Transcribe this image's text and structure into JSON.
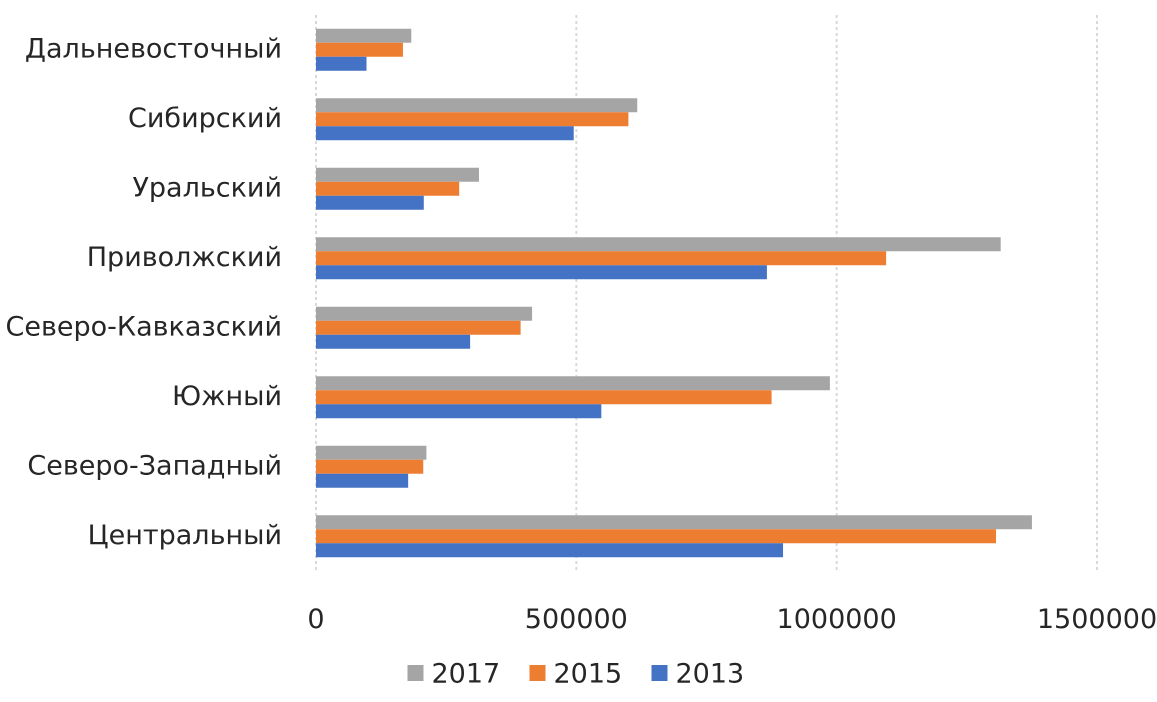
{
  "chart_data": {
    "type": "bar",
    "orientation": "horizontal",
    "title": "",
    "xlabel": "",
    "ylabel": "",
    "categories": [
      "Центральный",
      "Северо-Западный",
      "Южный",
      "Северо-Кавказский",
      "Приволжский",
      "Уральский",
      "Сибирский",
      "Дальневосточный"
    ],
    "series": [
      {
        "name": "2017",
        "color": "#A5A5A5",
        "values": [
          1375000,
          212000,
          987000,
          415000,
          1315000,
          313000,
          617000,
          183000
        ]
      },
      {
        "name": "2015",
        "color": "#ED7D31",
        "values": [
          1306000,
          206000,
          875000,
          393000,
          1095000,
          275000,
          600000,
          167000
        ]
      },
      {
        "name": "2013",
        "color": "#4472C4",
        "values": [
          897000,
          177000,
          548000,
          296000,
          866000,
          207000,
          495000,
          97000
        ]
      }
    ],
    "xlim": [
      0,
      1500000
    ],
    "ticks": [
      {
        "value": 0,
        "label": "0"
      },
      {
        "value": 500000,
        "label": "500000"
      },
      {
        "value": 1000000,
        "label": "1000000"
      },
      {
        "value": 1500000,
        "label": "1500000"
      }
    ],
    "grid": "vertical-dashed",
    "legend_position": "bottom"
  }
}
